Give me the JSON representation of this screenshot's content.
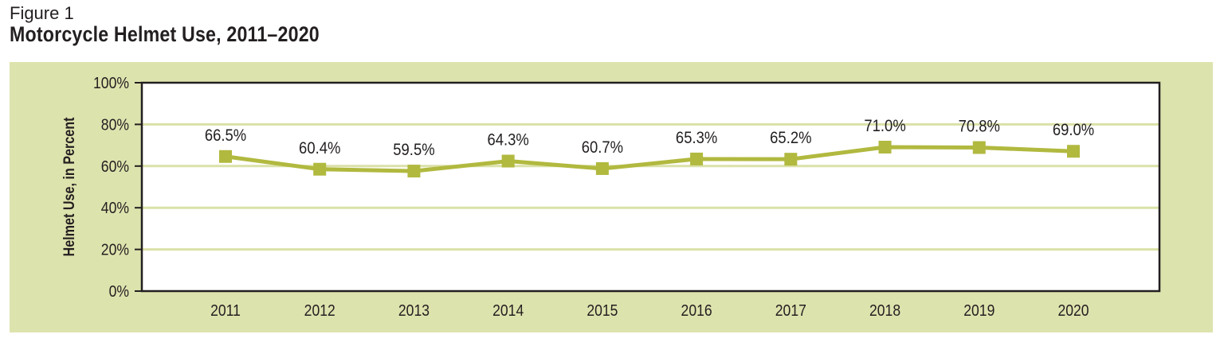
{
  "figure": {
    "label": "Figure 1",
    "title": "Motorcycle Helmet Use, 2011–2020"
  },
  "colors": {
    "panel_bg": "#dde3ad",
    "plot_bg": "#ffffff",
    "series": "#b1b93f",
    "gridline": "#dbe1a8",
    "axis": "#231f20",
    "text": "#231f20"
  },
  "chart_data": {
    "type": "line",
    "title": "Motorcycle Helmet Use, 2011–2020",
    "xlabel": "",
    "ylabel": "Helmet Use, in Percent",
    "ylim": [
      0,
      100
    ],
    "yticks": [
      "0%",
      "20%",
      "40%",
      "60%",
      "80%",
      "100%"
    ],
    "grid": true,
    "legend": null,
    "categories": [
      "2011",
      "2012",
      "2013",
      "2014",
      "2015",
      "2016",
      "2017",
      "2018",
      "2019",
      "2020"
    ],
    "series": [
      {
        "name": "Helmet Use",
        "values": [
          66.5,
          60.4,
          59.5,
          64.3,
          60.7,
          65.3,
          65.2,
          71.0,
          70.8,
          69.0
        ],
        "labels": [
          "66.5%",
          "60.4%",
          "59.5%",
          "64.3%",
          "60.7%",
          "65.3%",
          "65.2%",
          "71.0%",
          "70.8%",
          "69.0%"
        ],
        "marker": "square"
      }
    ]
  }
}
